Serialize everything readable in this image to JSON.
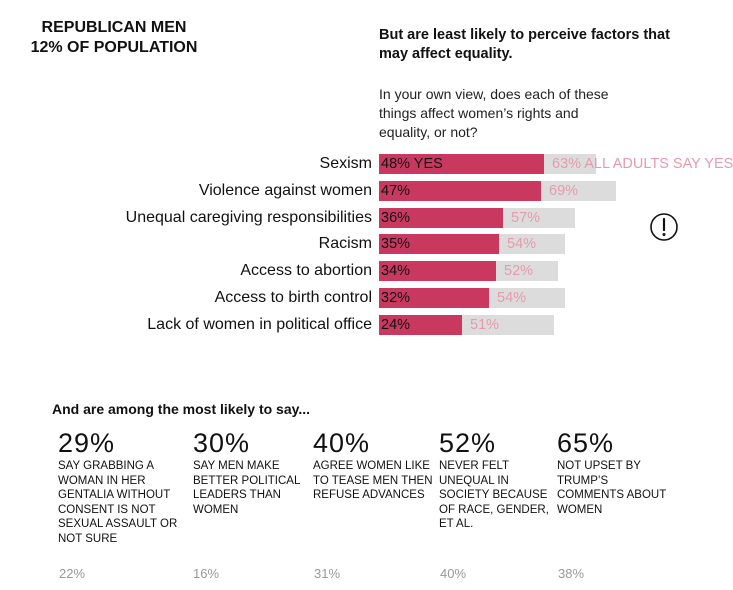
{
  "segment": {
    "line1": "REPUBLICAN MEN",
    "line2": "12% OF POPULATION"
  },
  "headline": "But are least likely to perceive factors that may affect equality.",
  "question": "In your own view, does each of these things affect women’s rights and equality, or not?",
  "colors": {
    "segment_bar": "#c9395f",
    "adults_bar": "#dcdcdc",
    "adults_text": "#e79aae"
  },
  "chart_data": {
    "type": "bar",
    "orientation": "horizontal",
    "xlim": [
      0,
      100
    ],
    "categories": [
      "Sexism",
      "Violence against women",
      "Unequal caregiving responsibilities",
      "Racism",
      "Access to abortion",
      "Access to birth control",
      "Lack of women in political office"
    ],
    "series": [
      {
        "values": [
          48,
          47,
          36,
          35,
          34,
          32,
          24
        ],
        "labels": [
          "48% YES",
          "47%",
          "36%",
          "35%",
          "34%",
          "32%",
          "24%"
        ]
      },
      {
        "values": [
          63,
          69,
          57,
          54,
          52,
          54,
          51
        ],
        "labels": [
          "63% ALL ADULTS SAY YES",
          "69%",
          "57%",
          "54%",
          "52%",
          "54%",
          "51%"
        ]
      }
    ]
  },
  "alert_icon": "exclamation-circle-icon",
  "subhead": "And are among the most likely to say...",
  "stats": [
    {
      "value": "29%",
      "desc": "SAY GRABBING A WOMAN IN HER GENTALIA WITHOUT CONSENT IS NOT SEXUAL ASSAULT OR NOT SURE",
      "adults": "22%"
    },
    {
      "value": "30%",
      "desc": "SAY MEN MAKE BETTER POLITICAL LEADERS THAN WOMEN",
      "adults": "16%"
    },
    {
      "value": "40%",
      "desc": "AGREE WOMEN LIKE TO TEASE MEN THEN REFUSE ADVANCES",
      "adults": "31%"
    },
    {
      "value": "52%",
      "desc": "NEVER FELT UNEQUAL IN SOCIETY BECAUSE OF RACE, GENDER, ET AL.",
      "adults": "40%"
    },
    {
      "value": "65%",
      "desc": "NOT UPSET BY TRUMP’S COMMENTS ABOUT WOMEN",
      "adults": "38%"
    }
  ]
}
